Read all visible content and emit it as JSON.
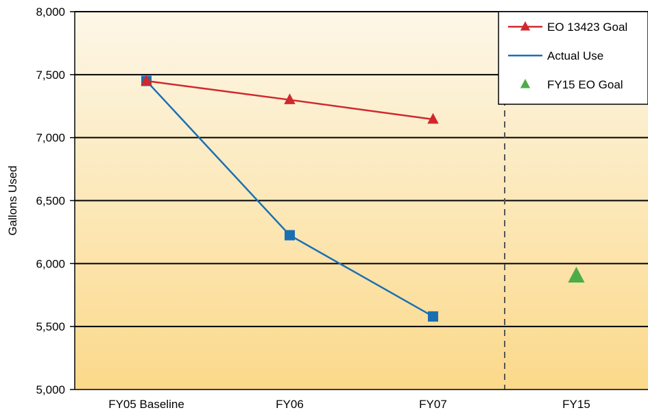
{
  "chart_data": {
    "type": "line",
    "title": "",
    "xlabel": "",
    "ylabel": "Gallons Used",
    "categories": [
      "FY05 Baseline",
      "FY06",
      "FY07",
      "FY15"
    ],
    "ylim": [
      5000,
      8000
    ],
    "yticks": [
      5000,
      5500,
      6000,
      6500,
      7000,
      7500,
      8000
    ],
    "ytick_labels": [
      "5,000",
      "5,500",
      "6,000",
      "6,500",
      "7,000",
      "7,500",
      "8,000"
    ],
    "grid": "horizontal",
    "legend_position": "top-right",
    "series": [
      {
        "name": "EO 13423 Goal",
        "values": [
          7450,
          7300,
          7145,
          null
        ],
        "color": "#d0282e",
        "marker": "triangle"
      },
      {
        "name": "Actual Use",
        "values": [
          7450,
          6225,
          5580,
          null
        ],
        "color": "#1a6fb3",
        "marker": "square"
      },
      {
        "name": "FY15 EO Goal",
        "values": [
          null,
          null,
          null,
          5900
        ],
        "color": "#4cad48",
        "marker": "triangle",
        "line": false
      }
    ],
    "separator": {
      "between": [
        "FY07",
        "FY15"
      ],
      "style": "dashed"
    },
    "background_gradient": [
      "#fdf7e8",
      "#fbd98a"
    ]
  }
}
